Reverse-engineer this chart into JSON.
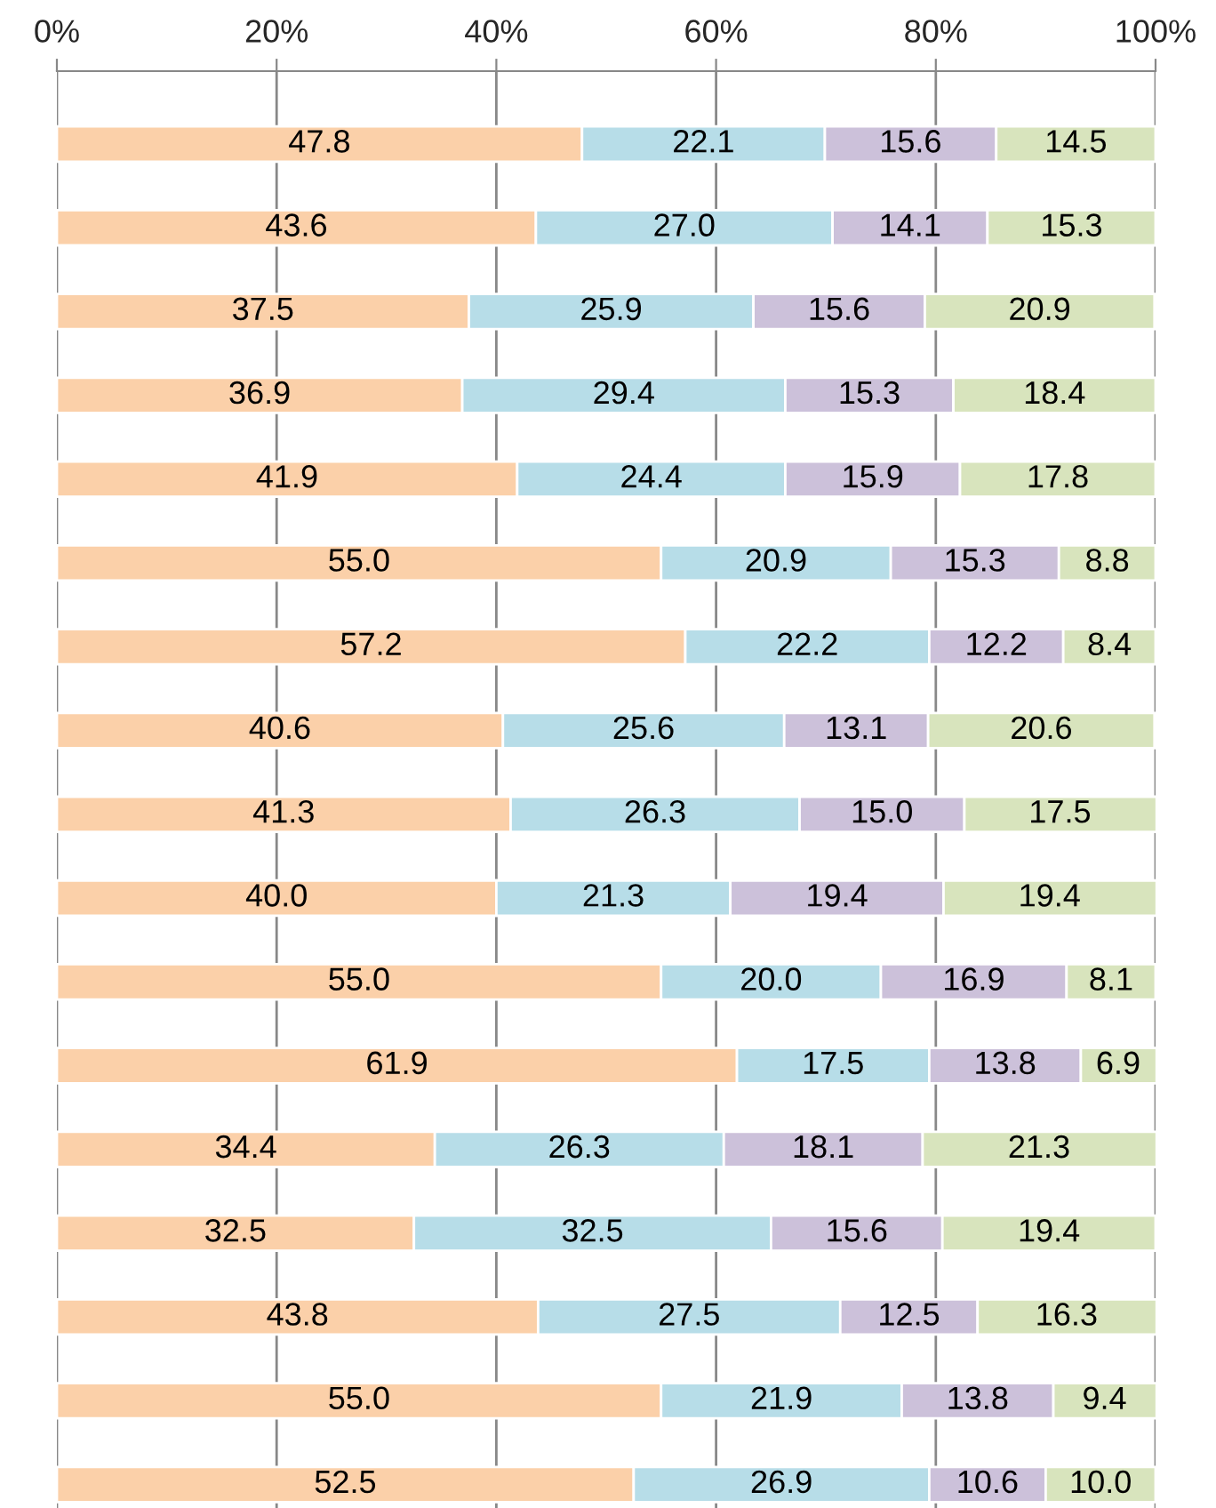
{
  "chart_data": {
    "type": "bar",
    "orientation": "horizontal",
    "stacked": true,
    "grid": "x",
    "categories": [
      null,
      null,
      null,
      null,
      null,
      null,
      null,
      null,
      null,
      null,
      null,
      null,
      null,
      null,
      null,
      null,
      null
    ],
    "xlim": [
      0,
      100
    ],
    "xticks": [
      {
        "value": 0,
        "label": "0%"
      },
      {
        "value": 20,
        "label": "20%"
      },
      {
        "value": 40,
        "label": "40%"
      },
      {
        "value": 60,
        "label": "60%"
      },
      {
        "value": 80,
        "label": "80%"
      },
      {
        "value": 100,
        "label": "100%"
      }
    ],
    "series": [
      {
        "color": "#fbd0a9",
        "values": [
          47.8,
          43.6,
          37.5,
          36.9,
          41.9,
          55.0,
          57.2,
          40.6,
          41.3,
          40.0,
          55.0,
          61.9,
          34.4,
          32.5,
          43.8,
          55.0,
          52.5
        ],
        "value_labels": [
          "47.8",
          "43.6",
          "37.5",
          "36.9",
          "41.9",
          "55.0",
          "57.2",
          "40.6",
          "41.3",
          "40.0",
          "55.0",
          "61.9",
          "34.4",
          "32.5",
          "43.8",
          "55.0",
          "52.5"
        ]
      },
      {
        "color": "#b7dde8",
        "values": [
          22.1,
          27.0,
          25.9,
          29.4,
          24.4,
          20.9,
          22.2,
          25.6,
          26.3,
          21.3,
          20.0,
          17.5,
          26.3,
          32.5,
          27.5,
          21.9,
          26.9
        ],
        "value_labels": [
          "22.1",
          "27.0",
          "25.9",
          "29.4",
          "24.4",
          "20.9",
          "22.2",
          "25.6",
          "26.3",
          "21.3",
          "20.0",
          "17.5",
          "26.3",
          "32.5",
          "27.5",
          "21.9",
          "26.9"
        ]
      },
      {
        "color": "#ccc1da",
        "values": [
          15.6,
          14.1,
          15.6,
          15.3,
          15.9,
          15.3,
          12.2,
          13.1,
          15.0,
          19.4,
          16.9,
          13.8,
          18.1,
          15.6,
          12.5,
          13.8,
          10.6
        ],
        "value_labels": [
          "15.6",
          "14.1",
          "15.6",
          "15.3",
          "15.9",
          "15.3",
          "12.2",
          "13.1",
          "15.0",
          "19.4",
          "16.9",
          "13.8",
          "18.1",
          "15.6",
          "12.5",
          "13.8",
          "10.6"
        ]
      },
      {
        "color": "#d8e4bd",
        "values": [
          14.5,
          15.3,
          20.9,
          18.4,
          17.8,
          8.8,
          8.4,
          20.6,
          17.5,
          19.4,
          8.1,
          6.9,
          21.3,
          19.4,
          16.3,
          9.4,
          10.0
        ],
        "value_labels": [
          "14.5",
          "15.3",
          "20.9",
          "18.4",
          "17.8",
          "8.8",
          "8.4",
          "20.6",
          "17.5",
          "19.4",
          "8.1",
          "6.9",
          "21.3",
          "19.4",
          "16.3",
          "9.4",
          "10.0"
        ]
      }
    ]
  }
}
